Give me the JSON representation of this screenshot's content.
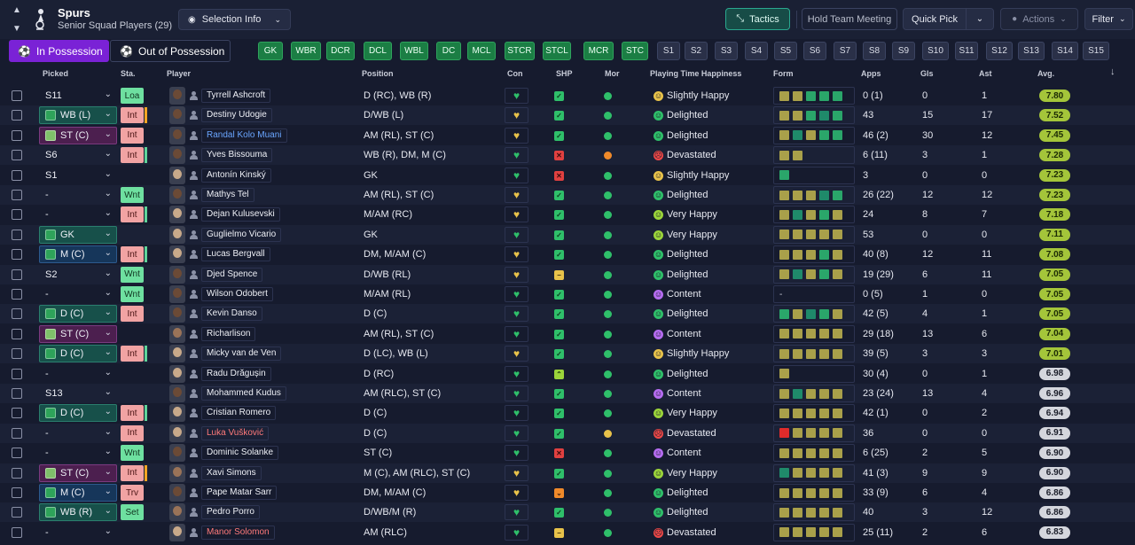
{
  "header": {
    "club_name": "Spurs",
    "subtitle": "Senior Squad Players (29)",
    "selection_info": "Selection Info",
    "tactics": "Tactics",
    "hold_meeting": "Hold Team Meeting",
    "quick_pick": "Quick Pick",
    "actions": "Actions",
    "filter": "Filter"
  },
  "tabs": {
    "in_possession": "In Possession",
    "out_possession": "Out of Possession"
  },
  "positions": [
    "GK",
    "WBR",
    "DCR",
    "DCL",
    "WBL",
    "DC",
    "MCL",
    "STCR",
    "STCL",
    "MCR",
    "STC",
    "S1",
    "S2",
    "S3",
    "S4",
    "S5",
    "S6",
    "S7",
    "S8",
    "S9",
    "S10",
    "S11",
    "S12",
    "S13",
    "S14",
    "S15"
  ],
  "columns": {
    "picked": "Picked",
    "sta": "Sta.",
    "player": "Player",
    "position": "Position",
    "con": "Con",
    "shp": "SHP",
    "mor": "Mor",
    "pth": "Playing Time Happiness",
    "form": "Form",
    "apps": "Apps",
    "gls": "Gls",
    "ast": "Ast",
    "avg": "Avg."
  },
  "colors": {
    "accent_purple": "#7a22d6",
    "tactics_green": "#2aa88f",
    "pos_green": "#1b7e44",
    "avg_green": "#a4c53a"
  },
  "rows": [
    {
      "picked": "S11",
      "pk": "none",
      "sta": "Loa",
      "staC": "g",
      "tag": "",
      "name": "Tyrrell Ashcroft",
      "nc": "",
      "face": "dark",
      "pos": "D (RC), WB (R)",
      "con": "g",
      "shp": "ok",
      "mor": "g",
      "pthIcon": "slight",
      "pth": "Slightly Happy",
      "form": [
        "y",
        "y",
        "g",
        "g",
        "g"
      ],
      "apps": "0 (1)",
      "gls": "0",
      "ast": "1",
      "avg": "7.80",
      "ac": "g"
    },
    {
      "picked": "WB (L)",
      "pk": "green",
      "sta": "Int",
      "staC": "r",
      "tag": "o",
      "name": "Destiny Udogie",
      "nc": "",
      "face": "dark",
      "pos": "D/WB (L)",
      "con": "y",
      "shp": "ok",
      "mor": "g",
      "pthIcon": "del",
      "pth": "Delighted",
      "form": [
        "y",
        "y",
        "g",
        "t",
        "g"
      ],
      "apps": "43",
      "gls": "15",
      "ast": "17",
      "avg": "7.52",
      "ac": "g"
    },
    {
      "picked": "ST (C)",
      "pk": "purple",
      "sta": "Int",
      "staC": "r",
      "tag": "",
      "name": "Randal Kolo Muani",
      "nc": "blue",
      "face": "dark",
      "pos": "AM (RL), ST (C)",
      "con": "y",
      "shp": "ok",
      "mor": "g",
      "pthIcon": "del",
      "pth": "Delighted",
      "form": [
        "y",
        "t",
        "y",
        "g",
        "g"
      ],
      "apps": "46 (2)",
      "gls": "30",
      "ast": "12",
      "avg": "7.45",
      "ac": "g"
    },
    {
      "picked": "S6",
      "pk": "none",
      "sta": "Int",
      "staC": "r",
      "tag": "g",
      "name": "Yves Bissouma",
      "nc": "",
      "face": "dark",
      "pos": "WB (R), DM, M (C)",
      "con": "g",
      "shp": "x",
      "mor": "o",
      "pthIcon": "dev",
      "pth": "Devastated",
      "form": [
        "y",
        "y"
      ],
      "apps": "6 (11)",
      "gls": "3",
      "ast": "1",
      "avg": "7.28",
      "ac": "g"
    },
    {
      "picked": "S1",
      "pk": "none",
      "sta": "",
      "staC": "",
      "tag": "",
      "name": "Antonín Kinský",
      "nc": "",
      "face": "light",
      "pos": "GK",
      "con": "g",
      "shp": "x",
      "mor": "g",
      "pthIcon": "slight",
      "pth": "Slightly Happy",
      "form": [
        "g"
      ],
      "apps": "3",
      "gls": "0",
      "ast": "0",
      "avg": "7.23",
      "ac": "g"
    },
    {
      "picked": "-",
      "pk": "none",
      "sta": "Wnt",
      "staC": "g",
      "tag": "",
      "name": "Mathys Tel",
      "nc": "",
      "face": "dark",
      "pos": "AM (RL), ST (C)",
      "con": "y",
      "shp": "ok",
      "mor": "g",
      "pthIcon": "del",
      "pth": "Delighted",
      "form": [
        "y",
        "y",
        "y",
        "t",
        "g"
      ],
      "apps": "26 (22)",
      "gls": "12",
      "ast": "12",
      "avg": "7.23",
      "ac": "g"
    },
    {
      "picked": "-",
      "pk": "none",
      "sta": "Int",
      "staC": "r",
      "tag": "g",
      "name": "Dejan Kulusevski",
      "nc": "",
      "face": "light",
      "pos": "M/AM (RC)",
      "con": "y",
      "shp": "ok",
      "mor": "g",
      "pthIcon": "very",
      "pth": "Very Happy",
      "form": [
        "y",
        "t",
        "y",
        "g",
        "y"
      ],
      "apps": "24",
      "gls": "8",
      "ast": "7",
      "avg": "7.18",
      "ac": "g"
    },
    {
      "picked": "GK",
      "pk": "green",
      "sta": "",
      "staC": "",
      "tag": "",
      "name": "Guglielmo Vicario",
      "nc": "",
      "face": "light",
      "pos": "GK",
      "con": "g",
      "shp": "ok",
      "mor": "g",
      "pthIcon": "very",
      "pth": "Very Happy",
      "form": [
        "y",
        "y",
        "y",
        "y",
        "y"
      ],
      "apps": "53",
      "gls": "0",
      "ast": "0",
      "avg": "7.11",
      "ac": "g"
    },
    {
      "picked": "M (C)",
      "pk": "blue",
      "sta": "Int",
      "staC": "r",
      "tag": "g",
      "name": "Lucas Bergvall",
      "nc": "",
      "face": "light",
      "pos": "DM, M/AM (C)",
      "con": "y",
      "shp": "ok",
      "mor": "g",
      "pthIcon": "del",
      "pth": "Delighted",
      "form": [
        "y",
        "y",
        "y",
        "g",
        "y"
      ],
      "apps": "40 (8)",
      "gls": "12",
      "ast": "11",
      "avg": "7.08",
      "ac": "g"
    },
    {
      "picked": "S2",
      "pk": "none",
      "sta": "Wnt",
      "staC": "g",
      "tag": "",
      "name": "Djed Spence",
      "nc": "",
      "face": "dark",
      "pos": "D/WB (RL)",
      "con": "y",
      "shp": "eq",
      "mor": "g",
      "pthIcon": "del",
      "pth": "Delighted",
      "form": [
        "y",
        "t",
        "y",
        "g",
        "y"
      ],
      "apps": "19 (29)",
      "gls": "6",
      "ast": "11",
      "avg": "7.05",
      "ac": "g"
    },
    {
      "picked": "-",
      "pk": "none",
      "sta": "Wnt",
      "staC": "g",
      "tag": "",
      "name": "Wilson Odobert",
      "nc": "",
      "face": "dark",
      "pos": "M/AM (RL)",
      "con": "g",
      "shp": "ok",
      "mor": "g",
      "pthIcon": "content",
      "pth": "Content",
      "form": [],
      "formText": "-",
      "apps": "0 (5)",
      "gls": "1",
      "ast": "0",
      "avg": "7.05",
      "ac": "g"
    },
    {
      "picked": "D (C)",
      "pk": "green",
      "sta": "Int",
      "staC": "r",
      "tag": "",
      "name": "Kevin Danso",
      "nc": "",
      "face": "dark",
      "pos": "D (C)",
      "con": "g",
      "shp": "ok",
      "mor": "g",
      "pthIcon": "del",
      "pth": "Delighted",
      "form": [
        "g",
        "y",
        "t",
        "g",
        "y"
      ],
      "apps": "42 (5)",
      "gls": "4",
      "ast": "1",
      "avg": "7.05",
      "ac": "g"
    },
    {
      "picked": "ST (C)",
      "pk": "purple",
      "sta": "",
      "staC": "",
      "tag": "",
      "name": "Richarlison",
      "nc": "",
      "face": "mid",
      "pos": "AM (RL), ST (C)",
      "con": "g",
      "shp": "ok",
      "mor": "g",
      "pthIcon": "content",
      "pth": "Content",
      "form": [
        "y",
        "y",
        "y",
        "y",
        "y"
      ],
      "apps": "29 (18)",
      "gls": "13",
      "ast": "6",
      "avg": "7.04",
      "ac": "g"
    },
    {
      "picked": "D (C)",
      "pk": "green",
      "sta": "Int",
      "staC": "r",
      "tag": "g",
      "name": "Micky van de Ven",
      "nc": "",
      "face": "light",
      "pos": "D (LC), WB (L)",
      "con": "y",
      "shp": "ok",
      "mor": "g",
      "pthIcon": "slight",
      "pth": "Slightly Happy",
      "form": [
        "y",
        "y",
        "y",
        "y",
        "y"
      ],
      "apps": "39 (5)",
      "gls": "3",
      "ast": "3",
      "avg": "7.01",
      "ac": "g"
    },
    {
      "picked": "-",
      "pk": "none",
      "sta": "",
      "staC": "",
      "tag": "",
      "name": "Radu Drăgușin",
      "nc": "",
      "face": "light",
      "pos": "D (RC)",
      "con": "g",
      "shp": "up",
      "mor": "g",
      "pthIcon": "del",
      "pth": "Delighted",
      "form": [
        "y"
      ],
      "apps": "30 (4)",
      "gls": "0",
      "ast": "1",
      "avg": "6.98",
      "ac": "d"
    },
    {
      "picked": "S13",
      "pk": "none",
      "sta": "",
      "staC": "",
      "tag": "",
      "name": "Mohammed Kudus",
      "nc": "",
      "face": "dark",
      "pos": "AM (RLC), ST (C)",
      "con": "g",
      "shp": "ok",
      "mor": "g",
      "pthIcon": "content",
      "pth": "Content",
      "form": [
        "y",
        "t",
        "y",
        "y",
        "y"
      ],
      "apps": "23 (24)",
      "gls": "13",
      "ast": "4",
      "avg": "6.96",
      "ac": "d"
    },
    {
      "picked": "D (C)",
      "pk": "green",
      "sta": "Int",
      "staC": "r",
      "tag": "g",
      "name": "Cristian Romero",
      "nc": "",
      "face": "light",
      "pos": "D (C)",
      "con": "g",
      "shp": "ok",
      "mor": "g",
      "pthIcon": "very",
      "pth": "Very Happy",
      "form": [
        "y",
        "y",
        "y",
        "y",
        "y"
      ],
      "apps": "42 (1)",
      "gls": "0",
      "ast": "2",
      "avg": "6.94",
      "ac": "d"
    },
    {
      "picked": "-",
      "pk": "none",
      "sta": "Int",
      "staC": "r",
      "tag": "",
      "name": "Luka Vušković",
      "nc": "red",
      "face": "light",
      "pos": "D (C)",
      "con": "g",
      "shp": "ok",
      "mor": "y",
      "pthIcon": "dev",
      "pth": "Devastated",
      "form": [
        "r",
        "y",
        "y",
        "y",
        "y"
      ],
      "apps": "36",
      "gls": "0",
      "ast": "0",
      "avg": "6.91",
      "ac": "d"
    },
    {
      "picked": "-",
      "pk": "none",
      "sta": "Wnt",
      "staC": "g",
      "tag": "",
      "name": "Dominic Solanke",
      "nc": "",
      "face": "dark",
      "pos": "ST (C)",
      "con": "g",
      "shp": "x",
      "mor": "g",
      "pthIcon": "content",
      "pth": "Content",
      "form": [
        "y",
        "y",
        "y",
        "y",
        "y"
      ],
      "apps": "6 (25)",
      "gls": "2",
      "ast": "5",
      "avg": "6.90",
      "ac": "d"
    },
    {
      "picked": "ST (C)",
      "pk": "purple",
      "sta": "Int",
      "staC": "r",
      "tag": "o",
      "name": "Xavi Simons",
      "nc": "",
      "face": "mid",
      "pos": "M (C), AM (RLC), ST (C)",
      "con": "y",
      "shp": "ok",
      "mor": "g",
      "pthIcon": "very",
      "pth": "Very Happy",
      "form": [
        "t",
        "y",
        "y",
        "y",
        "y"
      ],
      "apps": "41 (3)",
      "gls": "9",
      "ast": "9",
      "avg": "6.90",
      "ac": "d"
    },
    {
      "picked": "M (C)",
      "pk": "blue",
      "sta": "Trv",
      "staC": "r",
      "tag": "",
      "name": "Pape Matar Sarr",
      "nc": "",
      "face": "dark",
      "pos": "DM, M/AM (C)",
      "con": "y",
      "shp": "warn",
      "mor": "g",
      "pthIcon": "del",
      "pth": "Delighted",
      "form": [
        "y",
        "y",
        "y",
        "y",
        "y"
      ],
      "apps": "33 (9)",
      "gls": "6",
      "ast": "4",
      "avg": "6.86",
      "ac": "d"
    },
    {
      "picked": "WB (R)",
      "pk": "green",
      "sta": "Set",
      "staC": "g",
      "tag": "",
      "name": "Pedro Porro",
      "nc": "",
      "face": "mid",
      "pos": "D/WB/M (R)",
      "con": "g",
      "shp": "ok",
      "mor": "g",
      "pthIcon": "del",
      "pth": "Delighted",
      "form": [
        "y",
        "y",
        "y",
        "y",
        "y"
      ],
      "apps": "40",
      "gls": "3",
      "ast": "12",
      "avg": "6.86",
      "ac": "d"
    },
    {
      "picked": "-",
      "pk": "none",
      "sta": "",
      "staC": "",
      "tag": "",
      "name": "Manor Solomon",
      "nc": "red",
      "face": "light",
      "pos": "AM (RLC)",
      "con": "g",
      "shp": "eq",
      "mor": "g",
      "pthIcon": "dev",
      "pth": "Devastated",
      "form": [
        "y",
        "y",
        "y",
        "y",
        "y"
      ],
      "apps": "25 (11)",
      "gls": "2",
      "ast": "6",
      "avg": "6.83",
      "ac": "d"
    }
  ]
}
